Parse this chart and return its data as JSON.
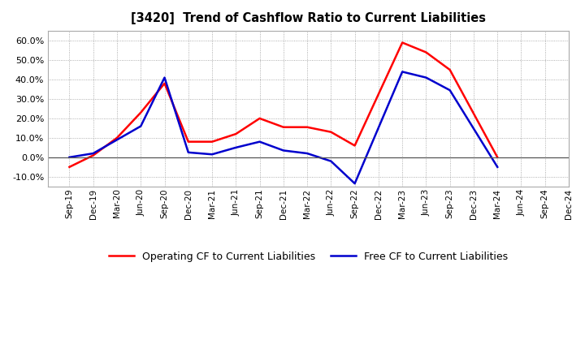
{
  "title": "[3420]  Trend of Cashflow Ratio to Current Liabilities",
  "x_labels": [
    "Sep-19",
    "Dec-19",
    "Mar-20",
    "Jun-20",
    "Sep-20",
    "Dec-20",
    "Mar-21",
    "Jun-21",
    "Sep-21",
    "Dec-21",
    "Mar-22",
    "Jun-22",
    "Sep-22",
    "Dec-22",
    "Mar-23",
    "Jun-23",
    "Sep-23",
    "Dec-23",
    "Mar-24",
    "Jun-24",
    "Sep-24",
    "Dec-24"
  ],
  "operating_cf": [
    -5.0,
    1.0,
    10.0,
    23.0,
    38.0,
    8.0,
    8.0,
    12.0,
    20.0,
    15.5,
    15.5,
    13.0,
    6.0,
    null,
    59.0,
    54.0,
    45.0,
    null,
    0.0,
    null,
    null,
    null
  ],
  "free_cf": [
    0.0,
    2.0,
    9.0,
    16.0,
    41.0,
    2.5,
    1.5,
    5.0,
    8.0,
    3.5,
    2.0,
    -2.0,
    -13.5,
    null,
    44.0,
    41.0,
    34.5,
    null,
    -5.0,
    null,
    null,
    null
  ],
  "operating_color": "#FF0000",
  "free_color": "#0000CD",
  "ylim": [
    -15.0,
    65.0
  ],
  "yticks": [
    -10.0,
    0.0,
    10.0,
    20.0,
    30.0,
    40.0,
    50.0,
    60.0
  ],
  "bg_color": "#FFFFFF",
  "plot_bg_color": "#FFFFFF",
  "grid_color": "#999999",
  "legend_labels": [
    "Operating CF to Current Liabilities",
    "Free CF to Current Liabilities"
  ]
}
